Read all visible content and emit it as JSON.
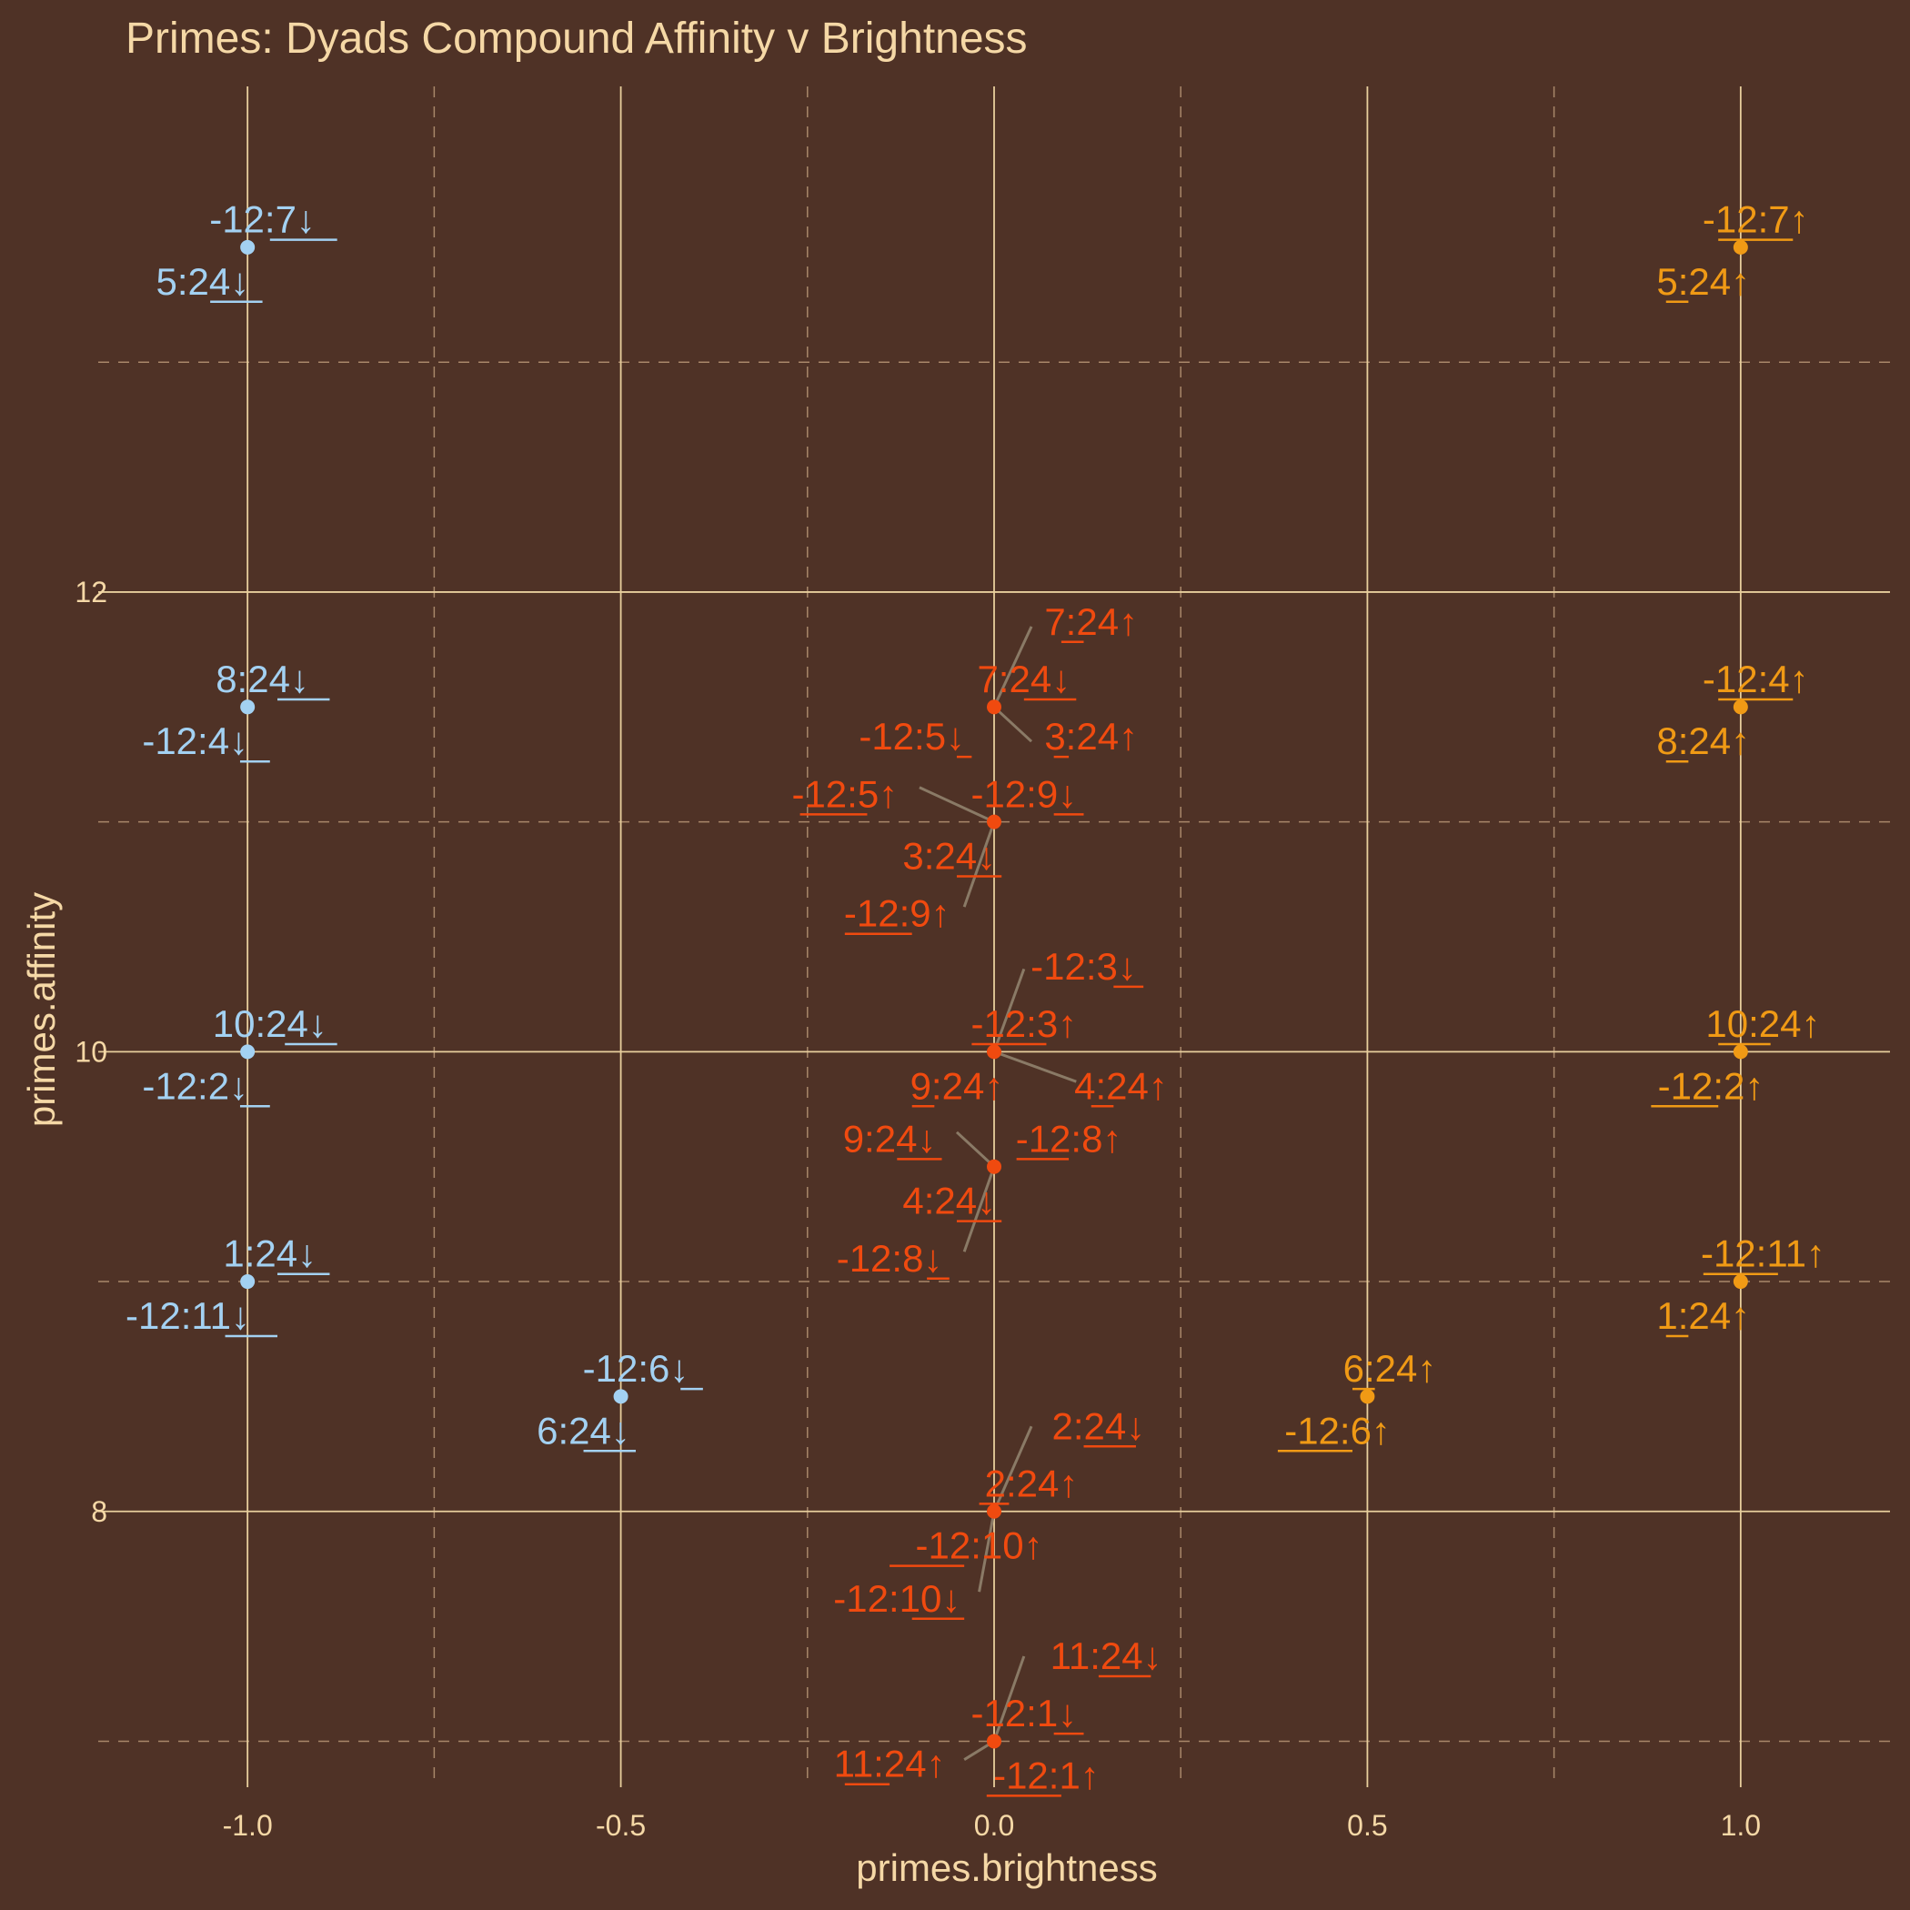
{
  "colors": {
    "background": "#4f3226",
    "text": "#f5d8a6",
    "grid_major": "#e8cf9d",
    "grid_minor": "#a8876a",
    "dark": "#a3d1f2",
    "neutral": "#f04a0f",
    "bright": "#f09a15",
    "leader": "#8a7a66"
  },
  "chart_data": {
    "type": "scatter",
    "title": "Primes: Dyads Compound Affinity v Brightness",
    "xlabel": "primes.brightness",
    "ylabel": "primes.affinity",
    "xlim": [
      -1.2,
      1.2
    ],
    "ylim": [
      6.8,
      14.2
    ],
    "xticks": [
      -1.0,
      -0.5,
      0.0,
      0.5,
      1.0
    ],
    "xtick_labels": [
      "-1.0",
      "-0.5",
      "0.0",
      "0.5",
      "1.0"
    ],
    "yticks": [
      8,
      10,
      12
    ],
    "ytick_labels": [
      "8",
      "10",
      "12"
    ],
    "grid": true,
    "points": [
      {
        "x": -1.0,
        "y": 13.5,
        "group": "dark"
      },
      {
        "x": -1.0,
        "y": 11.5,
        "group": "dark"
      },
      {
        "x": -1.0,
        "y": 10.0,
        "group": "dark"
      },
      {
        "x": -1.0,
        "y": 9.0,
        "group": "dark"
      },
      {
        "x": -0.5,
        "y": 8.5,
        "group": "dark"
      },
      {
        "x": 1.0,
        "y": 13.5,
        "group": "bright"
      },
      {
        "x": 1.0,
        "y": 11.5,
        "group": "bright"
      },
      {
        "x": 1.0,
        "y": 10.0,
        "group": "bright"
      },
      {
        "x": 1.0,
        "y": 9.0,
        "group": "bright"
      },
      {
        "x": 0.5,
        "y": 8.5,
        "group": "bright"
      },
      {
        "x": 0.0,
        "y": 11.5,
        "group": "neutral"
      },
      {
        "x": 0.0,
        "y": 11.0,
        "group": "neutral"
      },
      {
        "x": 0.0,
        "y": 10.0,
        "group": "neutral"
      },
      {
        "x": 0.0,
        "y": 9.5,
        "group": "neutral"
      },
      {
        "x": 0.0,
        "y": 8.0,
        "group": "neutral"
      },
      {
        "x": 0.0,
        "y": 7.0,
        "group": "neutral"
      }
    ],
    "labels": [
      {
        "text": "-12:7↓",
        "group": "dark",
        "x": -0.98,
        "y": 13.62,
        "px": -1.0,
        "py": 13.5,
        "ux": [
          -0.97,
          -0.88
        ]
      },
      {
        "text": "5:24↓",
        "group": "dark",
        "x": -1.06,
        "y": 13.35,
        "px": -1.0,
        "py": 13.5,
        "ux": [
          -1.05,
          -0.98
        ]
      },
      {
        "text": "8:24↓",
        "group": "dark",
        "x": -0.98,
        "y": 11.62,
        "px": -1.0,
        "py": 11.5,
        "ux": [
          -0.96,
          -0.89
        ]
      },
      {
        "text": "-12:4↓",
        "group": "dark",
        "x": -1.07,
        "y": 11.35,
        "px": -1.0,
        "py": 11.5,
        "ux": [
          -1.01,
          -0.97
        ]
      },
      {
        "text": "10:24↓",
        "group": "dark",
        "x": -0.97,
        "y": 10.12,
        "px": -1.0,
        "py": 10.0,
        "ux": [
          -0.95,
          -0.88
        ]
      },
      {
        "text": "-12:2↓",
        "group": "dark",
        "x": -1.07,
        "y": 9.85,
        "px": -1.0,
        "py": 10.0,
        "ux": [
          -1.01,
          -0.97
        ]
      },
      {
        "text": "1:24↓",
        "group": "dark",
        "x": -0.97,
        "y": 9.12,
        "px": -1.0,
        "py": 9.0,
        "ux": [
          -0.96,
          -0.89
        ]
      },
      {
        "text": "-12:11↓",
        "group": "dark",
        "x": -1.08,
        "y": 8.85,
        "px": -1.0,
        "py": 9.0,
        "ux": [
          -1.03,
          -0.96
        ]
      },
      {
        "text": "-12:6↓",
        "group": "dark",
        "x": -0.48,
        "y": 8.62,
        "px": -0.5,
        "py": 8.5,
        "ux": [
          -0.42,
          -0.39
        ]
      },
      {
        "text": "6:24↓",
        "group": "dark",
        "x": -0.55,
        "y": 8.35,
        "px": -0.5,
        "py": 8.5,
        "ux": [
          -0.55,
          -0.48
        ]
      },
      {
        "text": "-12:7↑",
        "group": "bright",
        "x": 1.02,
        "y": 13.62,
        "px": 1.0,
        "py": 13.5,
        "ux": [
          0.97,
          1.07
        ]
      },
      {
        "text": "5:24↑",
        "group": "bright",
        "x": 0.95,
        "y": 13.35,
        "px": 1.0,
        "py": 13.5,
        "ux": [
          0.9,
          0.93
        ]
      },
      {
        "text": "-12:4↑",
        "group": "bright",
        "x": 1.02,
        "y": 11.62,
        "px": 1.0,
        "py": 11.5,
        "ux": [
          0.97,
          1.07
        ]
      },
      {
        "text": "8:24↑",
        "group": "bright",
        "x": 0.95,
        "y": 11.35,
        "px": 1.0,
        "py": 11.5,
        "ux": [
          0.9,
          0.93
        ]
      },
      {
        "text": "10:24↑",
        "group": "bright",
        "x": 1.03,
        "y": 10.12,
        "px": 1.0,
        "py": 10.0,
        "ux": [
          0.97,
          1.04
        ]
      },
      {
        "text": "-12:2↑",
        "group": "bright",
        "x": 0.96,
        "y": 9.85,
        "px": 1.0,
        "py": 10.0,
        "ux": [
          0.88,
          0.97
        ]
      },
      {
        "text": "-12:11↑",
        "group": "bright",
        "x": 1.03,
        "y": 9.12,
        "px": 1.0,
        "py": 9.0,
        "ux": [
          0.95,
          1.05
        ]
      },
      {
        "text": "1:24↑",
        "group": "bright",
        "x": 0.95,
        "y": 8.85,
        "px": 1.0,
        "py": 9.0,
        "ux": [
          0.9,
          0.93
        ]
      },
      {
        "text": "6:24↑",
        "group": "bright",
        "x": 0.53,
        "y": 8.62,
        "px": 0.5,
        "py": 8.5,
        "ux": [
          0.48,
          0.51
        ]
      },
      {
        "text": "-12:6↑",
        "group": "bright",
        "x": 0.46,
        "y": 8.35,
        "px": 0.5,
        "py": 8.5,
        "ux": [
          0.38,
          0.48
        ]
      },
      {
        "text": "7:24↑",
        "group": "neutral",
        "x": 0.13,
        "y": 11.87,
        "px": 0.05,
        "py": 11.85,
        "ux": [
          0.09,
          0.12
        ]
      },
      {
        "text": "7:24↓",
        "group": "neutral",
        "x": 0.04,
        "y": 11.62,
        "px": 0.0,
        "py": 11.5,
        "ux": [
          0.04,
          0.11
        ]
      },
      {
        "text": "-12:5↓",
        "group": "neutral",
        "x": -0.11,
        "y": 11.37,
        "px": 0.0,
        "py": 11.5,
        "ux": [
          -0.05,
          -0.03
        ]
      },
      {
        "text": "-12:5↑",
        "group": "neutral",
        "x": -0.2,
        "y": 11.12,
        "px": -0.1,
        "py": 11.15,
        "ux": [
          -0.26,
          -0.17
        ]
      },
      {
        "text": "3:24↑",
        "group": "neutral",
        "x": 0.13,
        "y": 11.37,
        "px": 0.05,
        "py": 11.35,
        "ux": [
          0.08,
          0.1
        ]
      },
      {
        "text": "-12:9↓",
        "group": "neutral",
        "x": 0.04,
        "y": 11.12,
        "px": 0.0,
        "py": 11.0,
        "ux": [
          0.08,
          0.12
        ]
      },
      {
        "text": "3:24↓",
        "group": "neutral",
        "x": -0.06,
        "y": 10.85,
        "px": 0.0,
        "py": 11.0,
        "ux": [
          -0.05,
          0.01
        ]
      },
      {
        "text": "-12:9↑",
        "group": "neutral",
        "x": -0.13,
        "y": 10.6,
        "px": -0.04,
        "py": 10.63,
        "ux": [
          -0.2,
          -0.11
        ]
      },
      {
        "text": "-12:3↓",
        "group": "neutral",
        "x": 0.12,
        "y": 10.37,
        "px": 0.04,
        "py": 10.36,
        "ux": [
          0.16,
          0.2
        ]
      },
      {
        "text": "-12:3↑",
        "group": "neutral",
        "x": 0.04,
        "y": 10.12,
        "px": 0.0,
        "py": 10.0,
        "ux": [
          -0.03,
          0.07
        ]
      },
      {
        "text": "9:24↑",
        "group": "neutral",
        "x": -0.05,
        "y": 9.85,
        "px": 0.0,
        "py": 10.0,
        "ux": [
          -0.11,
          -0.08
        ]
      },
      {
        "text": "4:24↑",
        "group": "neutral",
        "x": 0.17,
        "y": 9.85,
        "px": 0.11,
        "py": 9.87,
        "ux": [
          0.13,
          0.16
        ]
      },
      {
        "text": "9:24↓",
        "group": "neutral",
        "x": -0.14,
        "y": 9.62,
        "px": -0.05,
        "py": 9.65,
        "ux": [
          -0.13,
          -0.07
        ]
      },
      {
        "text": "-12:8↑",
        "group": "neutral",
        "x": 0.1,
        "y": 9.62,
        "px": 0.0,
        "py": 9.5,
        "ux": [
          0.03,
          0.1
        ]
      },
      {
        "text": "4:24↓",
        "group": "neutral",
        "x": -0.06,
        "y": 9.35,
        "px": 0.0,
        "py": 9.5,
        "ux": [
          -0.05,
          0.01
        ]
      },
      {
        "text": "-12:8↓",
        "group": "neutral",
        "x": -0.14,
        "y": 9.1,
        "px": -0.04,
        "py": 9.13,
        "ux": [
          -0.09,
          -0.06
        ]
      },
      {
        "text": "2:24↓",
        "group": "neutral",
        "x": 0.14,
        "y": 8.37,
        "px": 0.05,
        "py": 8.37,
        "ux": [
          0.12,
          0.19
        ]
      },
      {
        "text": "2:24↑",
        "group": "neutral",
        "x": 0.05,
        "y": 8.12,
        "px": 0.0,
        "py": 8.0,
        "ux": [
          -0.02,
          0.02
        ]
      },
      {
        "text": "-12:10↑",
        "group": "neutral",
        "x": -0.02,
        "y": 7.85,
        "px": 0.0,
        "py": 8.0,
        "ux": [
          -0.14,
          -0.04
        ]
      },
      {
        "text": "-12:10↓",
        "group": "neutral",
        "x": -0.13,
        "y": 7.62,
        "px": -0.02,
        "py": 7.65,
        "ux": [
          -0.11,
          -0.04
        ]
      },
      {
        "text": "11:24↓",
        "group": "neutral",
        "x": 0.15,
        "y": 7.37,
        "px": 0.04,
        "py": 7.37,
        "ux": [
          0.14,
          0.21
        ]
      },
      {
        "text": "-12:1↓",
        "group": "neutral",
        "x": 0.04,
        "y": 7.12,
        "px": 0.0,
        "py": 7.0,
        "ux": [
          0.08,
          0.12
        ]
      },
      {
        "text": "11:24↑",
        "group": "neutral",
        "x": -0.14,
        "y": 6.9,
        "px": -0.04,
        "py": 6.92,
        "ux": [
          -0.2,
          -0.14
        ]
      },
      {
        "text": "-12:1↑",
        "group": "neutral",
        "x": 0.07,
        "y": 6.85,
        "px": 0.0,
        "py": 7.0,
        "ux": [
          -0.01,
          0.09
        ]
      }
    ]
  }
}
